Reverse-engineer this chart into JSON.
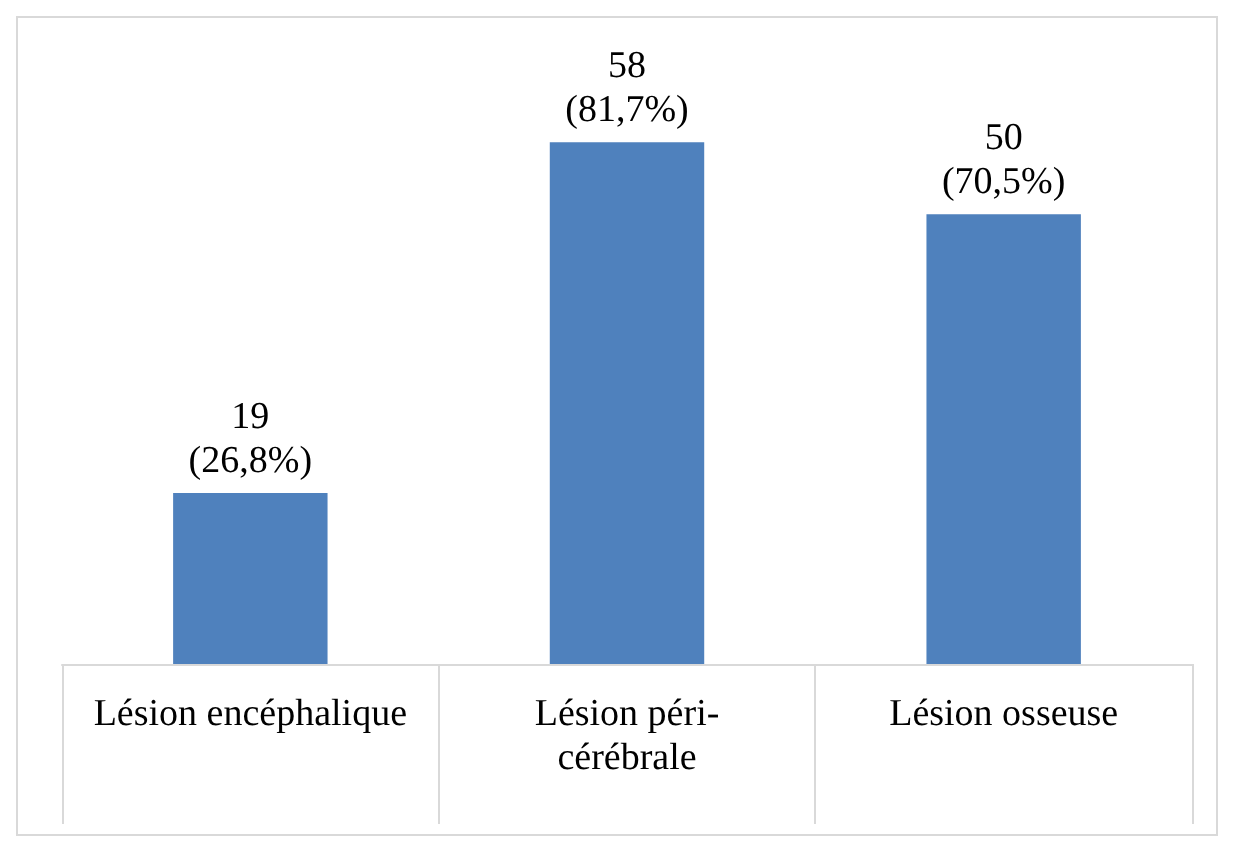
{
  "chart_data": {
    "type": "bar",
    "categories": [
      "Lésion encéphalique",
      "Lésion péri-cérébrale",
      "Lésion osseuse"
    ],
    "values": [
      19,
      58,
      50
    ],
    "value_labels": [
      "19\n(26,8%)",
      "58\n(81,7%)",
      "50\n(70,5%)"
    ],
    "color": "#4f81bd"
  }
}
